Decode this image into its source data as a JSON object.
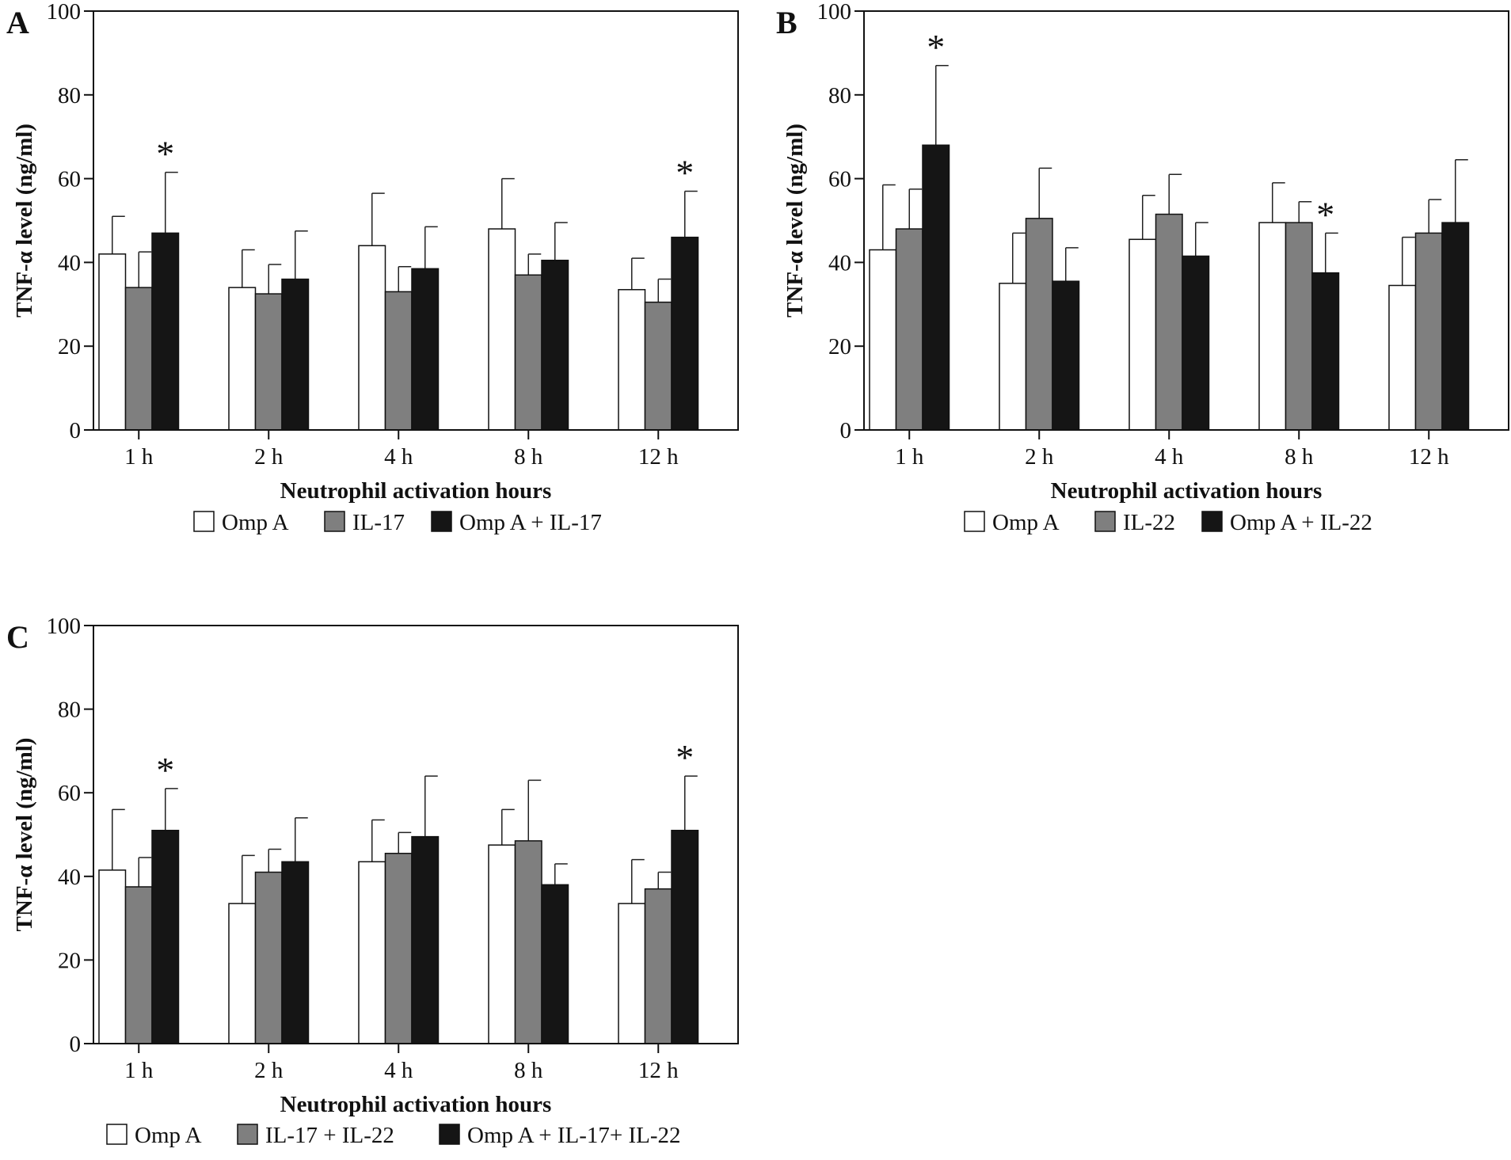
{
  "colors": {
    "Omp A": "#ffffff",
    "IL-17": "#7f7f7f",
    "IL-22": "#7f7f7f",
    "IL-17 + IL-22": "#7f7f7f",
    "combo": "#151515",
    "axis": "#111111"
  },
  "chart_data": [
    {
      "panel": "A",
      "type": "bar",
      "ylabel": "TNF-α level (ng/ml)",
      "xlabel": "Neutrophil activation hours",
      "ylim": [
        0,
        100
      ],
      "yticks": [
        "0",
        "20",
        "40",
        "60",
        "80",
        "100"
      ],
      "categories": [
        "1 h",
        "2 h",
        "4 h",
        "8 h",
        "12 h"
      ],
      "series": [
        {
          "name": "Omp A",
          "values": [
            42,
            34,
            44,
            48,
            33.5
          ],
          "errors": [
            9,
            9,
            12.5,
            12,
            7.5
          ]
        },
        {
          "name": "IL-17",
          "values": [
            34,
            32.5,
            33,
            37,
            30.5
          ],
          "errors": [
            8.5,
            7,
            6,
            5,
            5.5
          ]
        },
        {
          "name": "Omp A + IL-17",
          "values": [
            47,
            36,
            38.5,
            40.5,
            46
          ],
          "errors": [
            14.5,
            11.5,
            10,
            9,
            11
          ]
        }
      ],
      "significance": [
        "*",
        "",
        "",
        "",
        "*"
      ],
      "legend": "bottom"
    },
    {
      "panel": "B",
      "type": "bar",
      "ylabel": "TNF-α level (ng/ml)",
      "xlabel": "Neutrophil activation hours",
      "ylim": [
        0,
        100
      ],
      "yticks": [
        "0",
        "20",
        "40",
        "60",
        "80",
        "100"
      ],
      "categories": [
        "1 h",
        "2 h",
        "4 h",
        "8 h",
        "12 h"
      ],
      "series": [
        {
          "name": "Omp A",
          "values": [
            43,
            35,
            45.5,
            49.5,
            34.5
          ],
          "errors": [
            15.5,
            12,
            10.5,
            9.5,
            11.5
          ]
        },
        {
          "name": "IL-22",
          "values": [
            48,
            50.5,
            51.5,
            49.5,
            47
          ],
          "errors": [
            9.5,
            12,
            9.5,
            5,
            8
          ]
        },
        {
          "name": "Omp A + IL-22",
          "values": [
            68,
            35.5,
            41.5,
            37.5,
            49.5
          ],
          "errors": [
            19,
            8,
            8,
            9.5,
            15
          ]
        }
      ],
      "significance": [
        "*",
        "",
        "",
        "*",
        ""
      ],
      "legend": "bottom"
    },
    {
      "panel": "C",
      "type": "bar",
      "ylabel": "TNF-α level (ng/ml)",
      "xlabel": "Neutrophil activation hours",
      "ylim": [
        0,
        100
      ],
      "yticks": [
        "0",
        "20",
        "40",
        "60",
        "80",
        "100"
      ],
      "categories": [
        "1 h",
        "2 h",
        "4 h",
        "8 h",
        "12 h"
      ],
      "series": [
        {
          "name": "Omp A",
          "values": [
            41.5,
            33.5,
            43.5,
            47.5,
            33.5
          ],
          "errors": [
            14.5,
            11.5,
            10,
            8.5,
            10.5
          ]
        },
        {
          "name": "IL-17 + IL-22",
          "values": [
            37.5,
            41,
            45.5,
            48.5,
            37
          ],
          "errors": [
            7,
            5.5,
            5,
            14.5,
            4
          ]
        },
        {
          "name": "Omp A + IL-17+ IL-22",
          "values": [
            51,
            43.5,
            49.5,
            38,
            51
          ],
          "errors": [
            10,
            10.5,
            14.5,
            5,
            13
          ]
        }
      ],
      "significance": [
        "*",
        "",
        "",
        "",
        "*"
      ],
      "legend": "bottom"
    }
  ]
}
